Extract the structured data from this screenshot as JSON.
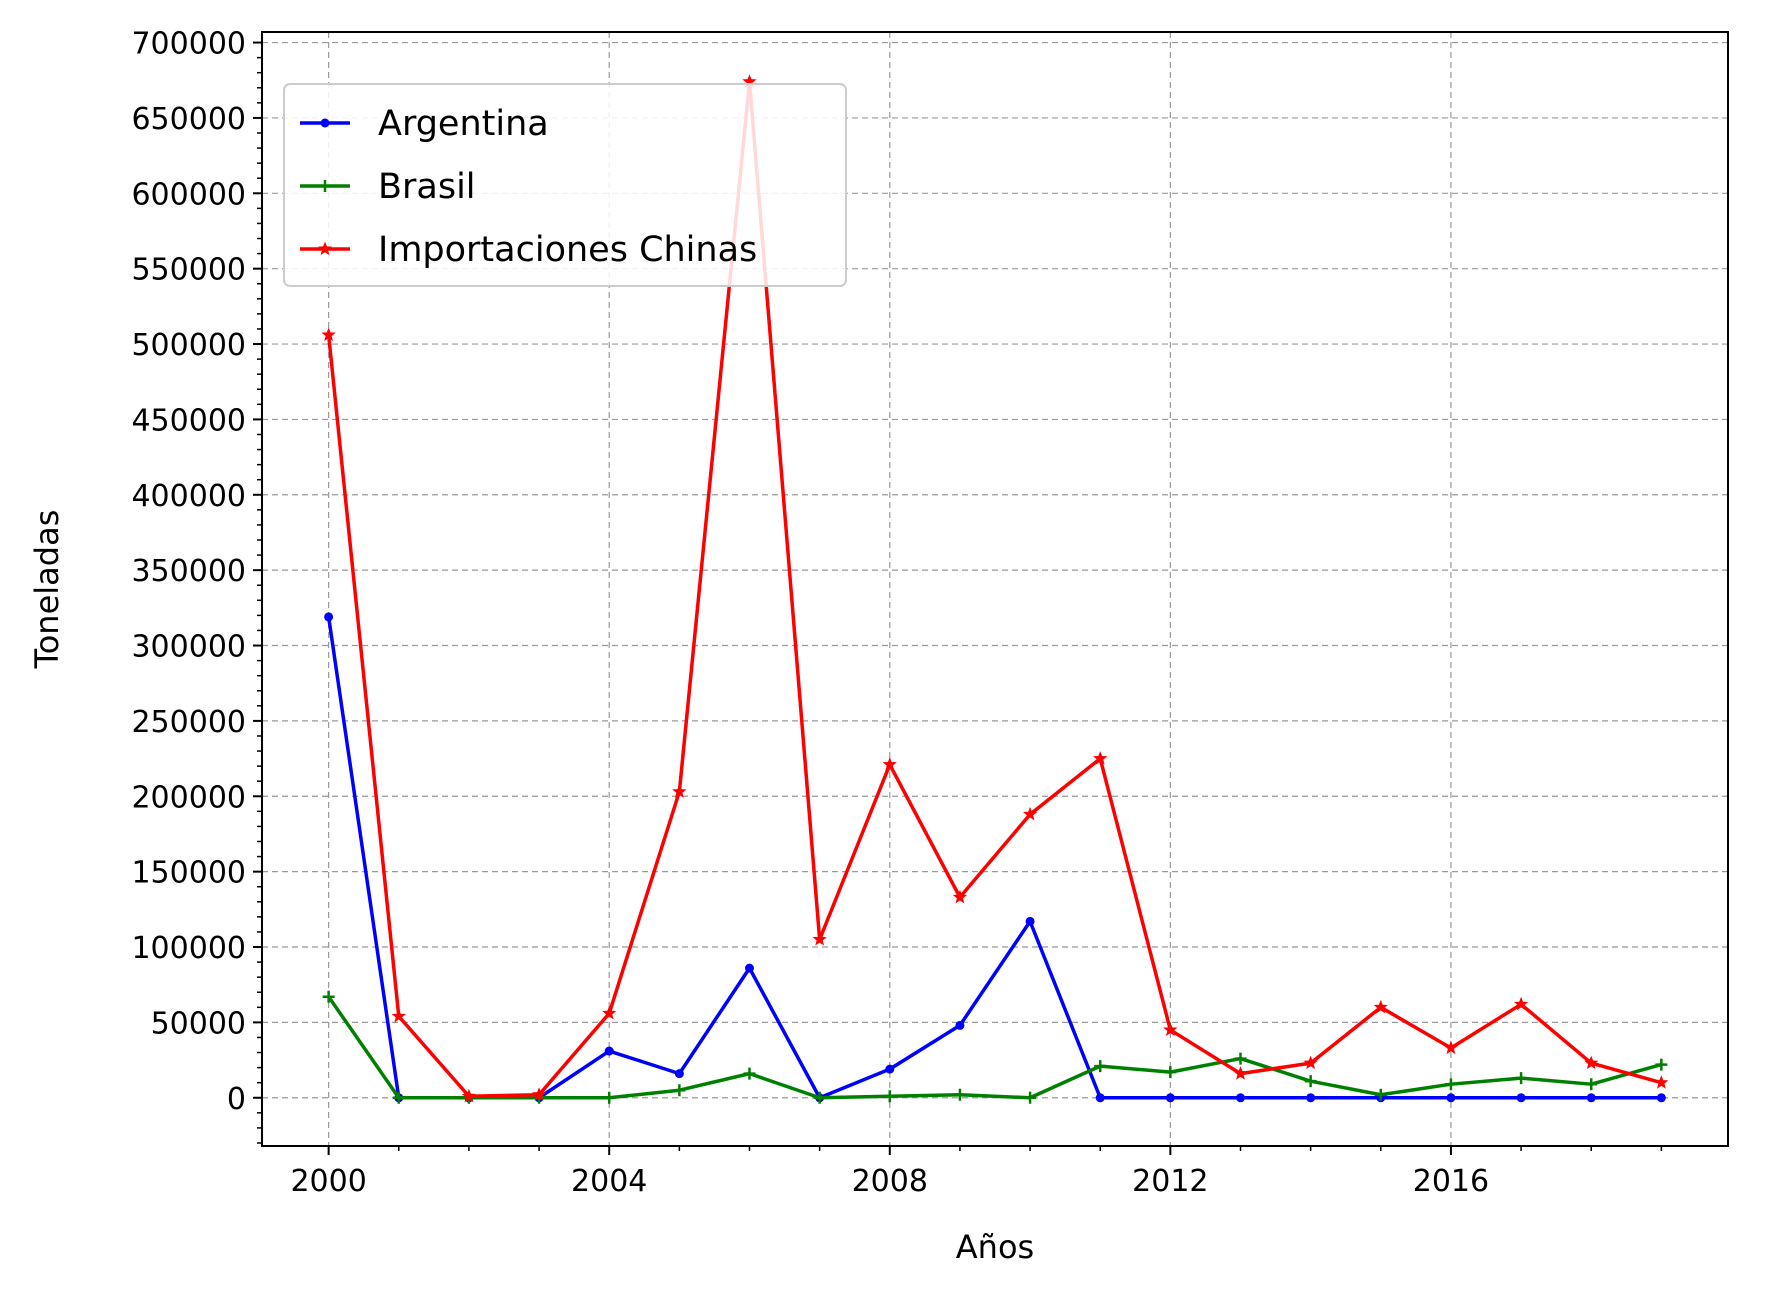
{
  "chart_data": {
    "type": "line",
    "title": "",
    "xlabel": "Años",
    "ylabel": "Toneladas",
    "x": [
      2000,
      2001,
      2002,
      2003,
      2004,
      2005,
      2006,
      2007,
      2008,
      2009,
      2010,
      2011,
      2012,
      2013,
      2014,
      2015,
      2016,
      2017,
      2018,
      2019
    ],
    "xlim": [
      1999.05,
      2019.95
    ],
    "ylim": [
      -32000,
      707000
    ],
    "xticks": [
      2000,
      2004,
      2008,
      2012,
      2016
    ],
    "xtick_labels": [
      "2000",
      "2004",
      "2008",
      "2012",
      "2016"
    ],
    "yticks": [
      0,
      50000,
      100000,
      150000,
      200000,
      250000,
      300000,
      350000,
      400000,
      450000,
      500000,
      550000,
      600000,
      650000,
      700000
    ],
    "ytick_labels": [
      "0",
      "50000",
      "100000",
      "150000",
      "200000",
      "250000",
      "300000",
      "350000",
      "400000",
      "450000",
      "500000",
      "550000",
      "600000",
      "650000",
      "700000"
    ],
    "grid": true,
    "legend_position": "top-left",
    "series": [
      {
        "name": "Argentina",
        "color": "#0000ff",
        "marker": "dot",
        "values": [
          319000,
          0,
          0,
          0,
          31000,
          16000,
          86000,
          0,
          19000,
          48000,
          117000,
          0,
          0,
          0,
          0,
          0,
          0,
          0,
          0,
          0
        ]
      },
      {
        "name": "Brasil",
        "color": "#008000",
        "marker": "plus",
        "values": [
          67000,
          0,
          0,
          0,
          0,
          5000,
          16000,
          0,
          1000,
          2000,
          0,
          21000,
          17000,
          26000,
          11000,
          2000,
          9000,
          13000,
          9000,
          22000
        ]
      },
      {
        "name": "Importaciones Chinas",
        "color": "#ff0000",
        "marker": "star",
        "values": [
          506000,
          54000,
          1000,
          2000,
          56000,
          203000,
          674000,
          105000,
          221000,
          133000,
          188000,
          225000,
          45000,
          16000,
          23000,
          60000,
          33000,
          62000,
          23000,
          10000
        ]
      }
    ]
  }
}
